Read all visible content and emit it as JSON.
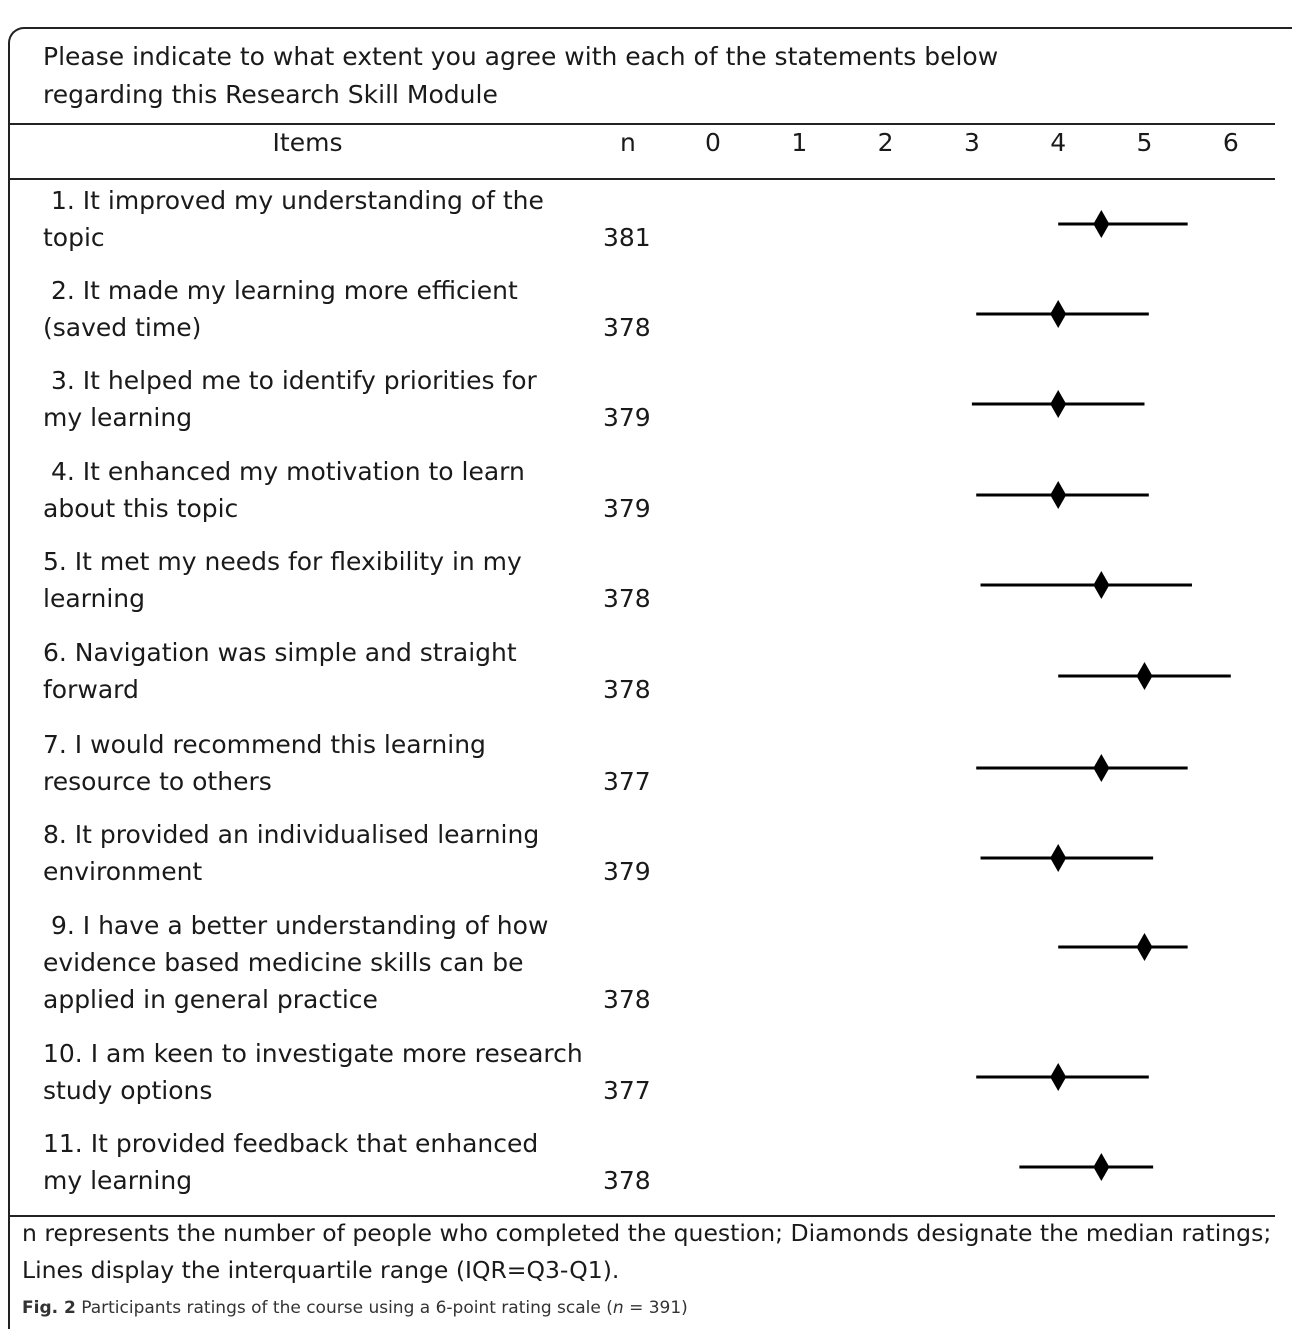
{
  "intro": {
    "line1": "Please indicate to what extent you agree with each of the statements below",
    "line2": "regarding this Research Skill Module"
  },
  "header": {
    "items": "Items",
    "n": "n",
    "ticks": [
      "0",
      "1",
      "2",
      "3",
      "4",
      "5",
      "6"
    ]
  },
  "rows": [
    {
      "lines": [
        " 1. It improved my understanding of the",
        "topic"
      ],
      "n": "381"
    },
    {
      "lines": [
        " 2. It made my learning more efficient",
        "(saved time)"
      ],
      "n": "378"
    },
    {
      "lines": [
        " 3. It helped me to identify priorities for",
        "my learning"
      ],
      "n": "379"
    },
    {
      "lines": [
        " 4. It enhanced my motivation to learn",
        "about this topic"
      ],
      "n": "379"
    },
    {
      "lines": [
        "5. It met my needs for flexibility in my",
        "learning"
      ],
      "n": "378"
    },
    {
      "lines": [
        "6. Navigation was simple and straight",
        "forward"
      ],
      "n": "378"
    },
    {
      "lines": [
        "7. I would recommend this learning",
        "resource to others"
      ],
      "n": "377"
    },
    {
      "lines": [
        "8. It provided an individualised learning",
        "environment"
      ],
      "n": "379"
    },
    {
      "lines": [
        " 9. I have a better understanding of how",
        "evidence based medicine skills can be",
        "applied in general practice"
      ],
      "n": "378"
    },
    {
      "lines": [
        "10. I am keen to investigate more research",
        "study options"
      ],
      "n": "377"
    },
    {
      "lines": [
        "11. It provided feedback that enhanced",
        "my learning"
      ],
      "n": "378"
    }
  ],
  "footnote": {
    "line1": "n represents the number of people who completed the question; Diamonds designate the median ratings;",
    "line2": "Lines display the interquartile range (IQR=Q3-Q1)."
  },
  "caption": {
    "label": "Fig. 2",
    "text_pre": " Participants ratings of the course using a 6-point rating scale (",
    "text_n": "n",
    "text_post": " = 391)"
  },
  "chart_data": {
    "type": "interval",
    "xlim": [
      0,
      6
    ],
    "x_ticks": [
      0,
      1,
      2,
      3,
      4,
      5,
      6
    ],
    "series": [
      {
        "name": "Diamonds designate the median ratings",
        "marker": "diamond",
        "values": [
          4.5,
          4.0,
          4.0,
          4.0,
          4.5,
          5.0,
          4.5,
          4.0,
          5.0,
          4.0,
          4.5
        ]
      },
      {
        "name": "Lines display the interquartile range (IQR=Q3-Q1)",
        "marker": "line",
        "ranges": [
          [
            4.0,
            5.5
          ],
          [
            3.05,
            5.05
          ],
          [
            3.0,
            5.0
          ],
          [
            3.05,
            5.05
          ],
          [
            3.1,
            5.55
          ],
          [
            4.0,
            6.0
          ],
          [
            3.05,
            5.5
          ],
          [
            3.1,
            5.1
          ],
          [
            4.0,
            5.5
          ],
          [
            3.05,
            5.05
          ],
          [
            3.55,
            5.1
          ]
        ]
      }
    ],
    "colors": {
      "marks": "#000000",
      "rules": "#222222"
    }
  }
}
